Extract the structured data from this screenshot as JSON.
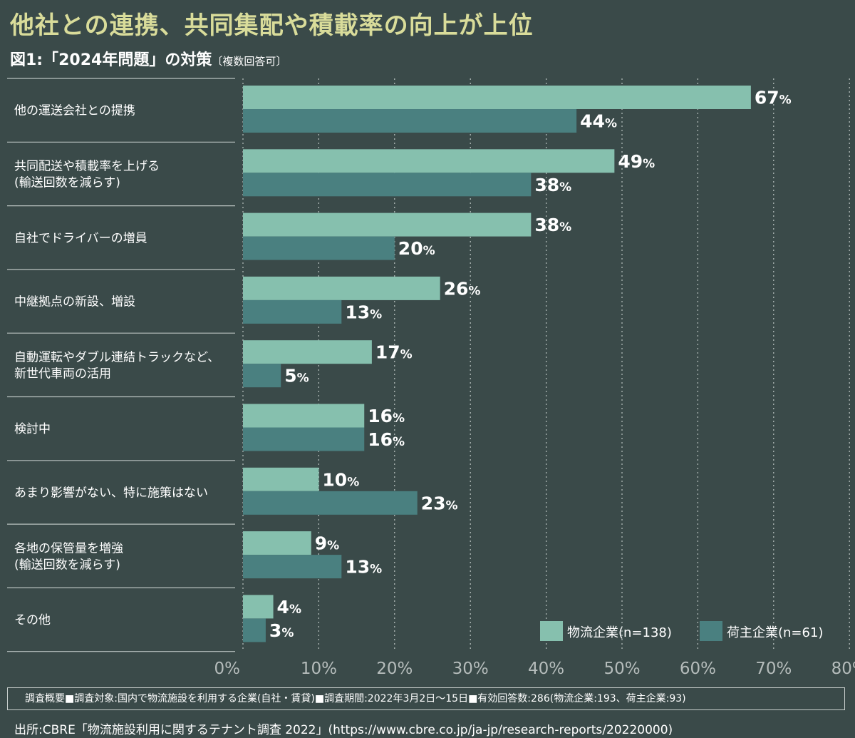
{
  "title": "他社との連携、共同集配や積載率の向上が上位",
  "subtitle": "図1:「2024年問題」の対策",
  "subtitle_note": "〔複数回答可〕",
  "colors": {
    "background": "#3a4a49",
    "title": "#d9dc9a",
    "series_logistics": "#86c0ae",
    "series_shipper": "#4a8080"
  },
  "chart_data": {
    "type": "bar",
    "orientation": "horizontal",
    "categories": [
      [
        "他の運送会社との提携"
      ],
      [
        "共同配送や積載率を上げる",
        "(輸送回数を減らす)"
      ],
      [
        "自社でドライバーの増員"
      ],
      [
        "中継拠点の新設、増設"
      ],
      [
        "自動運転やダブル連結トラックなど、",
        "新世代車両の活用"
      ],
      [
        "検討中"
      ],
      [
        "あまり影響がない、特に施策はない"
      ],
      [
        "各地の保管量を増強",
        "(輸送回数を減らす)"
      ],
      [
        "その他"
      ]
    ],
    "series": [
      {
        "name": "物流企業(n=138)",
        "values": [
          67,
          49,
          38,
          26,
          17,
          16,
          10,
          9,
          4
        ]
      },
      {
        "name": "荷主企業(n=61)",
        "values": [
          44,
          38,
          20,
          13,
          5,
          16,
          23,
          13,
          3
        ]
      }
    ],
    "value_suffix": "%",
    "xlim": [
      0,
      80
    ],
    "xticks": [
      "0%",
      "10%",
      "20%",
      "30%",
      "40%",
      "50%",
      "60%",
      "70%",
      "80%"
    ],
    "grid": true,
    "legend_position": "bottom-right"
  },
  "footnote": "調査概要■調査対象:国内で物流施設を利用する企業(自社・賃貸)■調査期間:2022年3月2日〜15日■有効回答数:286(物流企業:193、荷主企業:93)",
  "source": "出所:CBRE「物流施設利用に関するテナント調査 2022」(https://www.cbre.co.jp/ja-jp/research-reports/20220000)"
}
